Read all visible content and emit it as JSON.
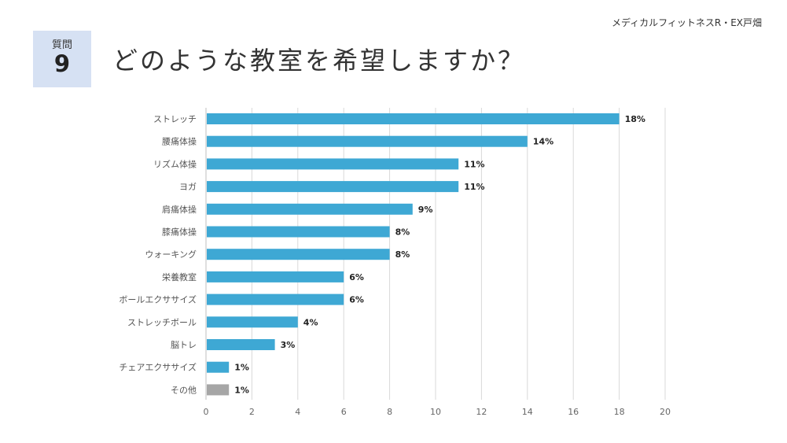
{
  "header": {
    "organization": "メディカルフィットネスR・EX戸畑",
    "question_label": "質問",
    "question_number": "9",
    "title": "どのような教室を希望しますか？"
  },
  "chart_data": {
    "type": "bar",
    "orientation": "horizontal",
    "title": "どのような教室を希望しますか？",
    "categories": [
      "ストレッチ",
      "腰痛体操",
      "リズム体操",
      "ヨガ",
      "肩痛体操",
      "膝痛体操",
      "ウォーキング",
      "栄養教室",
      "ボールエクササイズ",
      "ストレッチボール",
      "脳トレ",
      "チェアエクササイズ",
      "その他"
    ],
    "values": [
      18,
      14,
      11,
      11,
      9,
      8,
      8,
      6,
      6,
      4,
      3,
      1,
      1
    ],
    "value_labels": [
      "18%",
      "14%",
      "11%",
      "11%",
      "9%",
      "8%",
      "8%",
      "6%",
      "6%",
      "4%",
      "3%",
      "1%",
      "1%"
    ],
    "xlim": [
      0,
      20
    ],
    "xticks": [
      "0",
      "2",
      "4",
      "6",
      "8",
      "10",
      "12",
      "14",
      "16",
      "18",
      "20"
    ],
    "grid": true,
    "bar_color": "#3ea8d4",
    "other_color": "#a6a6a6",
    "grid_color": "#d9d9d9"
  }
}
